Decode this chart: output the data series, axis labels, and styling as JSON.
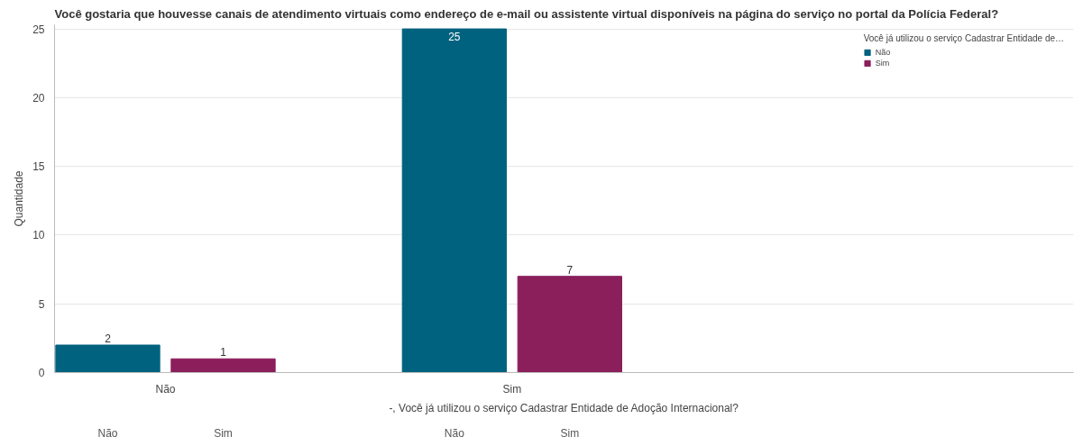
{
  "chart_data": {
    "type": "bar",
    "title": "Você gostaria que houvesse canais de atendimento virtuais como endereço de e-mail ou assistente virtual disponíveis na página do serviço no portal da Polícia Federal?",
    "xlabel": "-, Você já utilizou o serviço Cadastrar Entidade de Adoção Internacional?",
    "ylabel": "Quantidade",
    "legend_title": "Você já utilizou o serviço Cadastrar Entidade de…",
    "categories": [
      "Não",
      "Sim"
    ],
    "series": [
      {
        "name": "Não",
        "color": "#00627f",
        "values": [
          2,
          25
        ]
      },
      {
        "name": "Sim",
        "color": "#8b1f5c",
        "values": [
          1,
          7
        ]
      }
    ],
    "ylim": [
      0,
      25.3
    ],
    "yticks": [
      0,
      5,
      10,
      15,
      20,
      25
    ],
    "grid": "y",
    "legend": "top right",
    "data_labels": true
  }
}
